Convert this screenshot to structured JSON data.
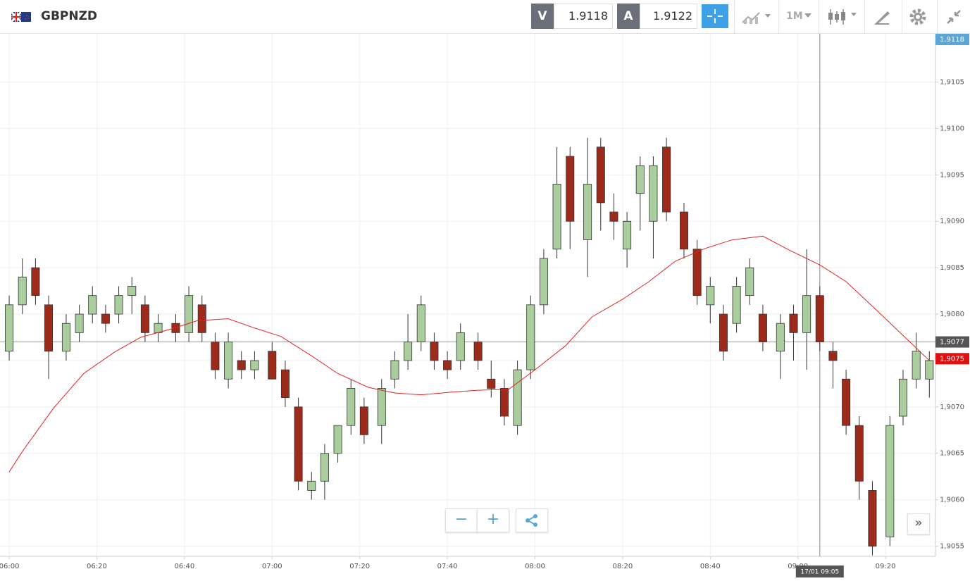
{
  "toolbar": {
    "symbol": "GBPNZD",
    "sell_label": "V",
    "sell_price": 1.9118,
    "buy_label": "A",
    "buy_price": 1.9122,
    "timeframe": "1M"
  },
  "chart_data": {
    "type": "candlestick",
    "x": [
      0,
      3,
      6,
      9,
      13,
      16,
      19,
      22,
      25,
      28,
      31,
      34,
      38,
      41,
      44,
      47,
      50,
      53,
      56,
      60,
      63,
      66,
      69,
      72,
      75,
      78,
      81,
      85,
      88,
      91,
      94,
      97,
      100,
      103,
      107,
      110,
      113,
      116,
      119,
      122,
      125,
      128,
      132,
      135,
      138,
      141,
      144,
      147,
      150,
      154,
      157,
      160,
      163,
      166,
      169,
      172,
      176,
      179,
      182,
      185,
      188,
      191,
      194,
      197,
      201,
      204,
      207,
      210
    ],
    "open": [
      1.9076,
      1.9081,
      1.9085,
      1.9081,
      1.9076,
      1.9078,
      1.908,
      1.908,
      1.908,
      1.9082,
      1.9081,
      1.9078,
      1.9079,
      1.9078,
      1.9081,
      1.9077,
      1.9073,
      1.9075,
      1.9074,
      1.9076,
      1.9074,
      1.907,
      1.9061,
      1.9062,
      1.9065,
      1.9068,
      1.907,
      1.9068,
      1.9073,
      1.9075,
      1.9077,
      1.9077,
      1.9075,
      1.9075,
      1.9077,
      1.9073,
      1.9072,
      1.9068,
      1.9074,
      1.9081,
      1.9087,
      1.9097,
      1.9088,
      1.9098,
      1.9091,
      1.9087,
      1.9093,
      1.909,
      1.9098,
      1.9091,
      1.9087,
      1.9081,
      1.908,
      1.9079,
      1.9082,
      1.908,
      1.9076,
      1.908,
      1.9078,
      1.9082,
      1.9076,
      1.9073,
      1.9068,
      1.9061,
      1.9056,
      1.9069,
      1.9073,
      1.9073
    ],
    "high": [
      1.9082,
      1.9086,
      1.9086,
      1.9082,
      1.908,
      1.9081,
      1.9083,
      1.9081,
      1.9083,
      1.9084,
      1.9082,
      1.908,
      1.908,
      1.9083,
      1.9082,
      1.9078,
      1.9078,
      1.9076,
      1.9076,
      1.9077,
      1.9075,
      1.9071,
      1.9063,
      1.9066,
      1.9068,
      1.9073,
      1.9071,
      1.9073,
      1.9076,
      1.908,
      1.9082,
      1.9078,
      1.9076,
      1.9079,
      1.9078,
      1.9075,
      1.9073,
      1.9075,
      1.9082,
      1.9087,
      1.9098,
      1.9098,
      1.9099,
      1.9099,
      1.9093,
      1.9091,
      1.9097,
      1.9097,
      1.9099,
      1.9092,
      1.9088,
      1.9084,
      1.9081,
      1.9084,
      1.9086,
      1.9081,
      1.908,
      1.9081,
      1.9087,
      1.9083,
      1.9077,
      1.9074,
      1.9069,
      1.9062,
      1.9069,
      1.9074,
      1.9078,
      1.9076
    ],
    "low": [
      1.9075,
      1.908,
      1.9081,
      1.9073,
      1.9075,
      1.9077,
      1.9079,
      1.9078,
      1.9079,
      1.908,
      1.9077,
      1.9077,
      1.9077,
      1.9077,
      1.9077,
      1.9073,
      1.9072,
      1.9073,
      1.9073,
      1.9073,
      1.907,
      1.9061,
      1.906,
      1.906,
      1.9064,
      1.9067,
      1.9066,
      1.9066,
      1.9072,
      1.9074,
      1.9076,
      1.9074,
      1.9073,
      1.9074,
      1.9074,
      1.9071,
      1.9068,
      1.9067,
      1.9073,
      1.908,
      1.9086,
      1.9087,
      1.9084,
      1.9089,
      1.9088,
      1.9085,
      1.9089,
      1.9086,
      1.909,
      1.9086,
      1.9081,
      1.9079,
      1.9075,
      1.9078,
      1.9081,
      1.9076,
      1.9073,
      1.9075,
      1.9074,
      1.9076,
      1.9072,
      1.9067,
      1.906,
      1.9054,
      1.9055,
      1.9068,
      1.9072,
      1.9071
    ],
    "close": [
      1.9081,
      1.9084,
      1.9082,
      1.9076,
      1.9079,
      1.908,
      1.9082,
      1.9079,
      1.9082,
      1.9083,
      1.9078,
      1.9079,
      1.9078,
      1.9082,
      1.9078,
      1.9074,
      1.9077,
      1.9074,
      1.9075,
      1.9073,
      1.9071,
      1.9062,
      1.9062,
      1.9065,
      1.9068,
      1.9072,
      1.9067,
      1.9072,
      1.9075,
      1.9077,
      1.9081,
      1.9075,
      1.9074,
      1.9078,
      1.9075,
      1.9072,
      1.9069,
      1.9074,
      1.9081,
      1.9086,
      1.9094,
      1.909,
      1.9094,
      1.9092,
      1.909,
      1.909,
      1.9096,
      1.9096,
      1.9091,
      1.9087,
      1.9082,
      1.9083,
      1.9076,
      1.9083,
      1.9085,
      1.9077,
      1.9079,
      1.9078,
      1.9082,
      1.9077,
      1.9075,
      1.9068,
      1.9062,
      1.9055,
      1.9068,
      1.9073,
      1.9076,
      1.9075
    ],
    "up_color": "#a9cd9c",
    "down_color": "#9c2b1c",
    "moving_average": {
      "color": "#e02424",
      "x": [
        0,
        3,
        10,
        17,
        24,
        30,
        37,
        43,
        50,
        56,
        62,
        69,
        75,
        82,
        88,
        94,
        101,
        107,
        114,
        120,
        127,
        133,
        140,
        146,
        152,
        159,
        165,
        172,
        178,
        185,
        191,
        198,
        210
      ],
      "values": [
        1.9063,
        1.90652,
        1.90698,
        1.90736,
        1.90759,
        1.90775,
        1.90784,
        1.90793,
        1.90795,
        1.90785,
        1.90776,
        1.90755,
        1.90736,
        1.90721,
        1.90715,
        1.90713,
        1.90716,
        1.90718,
        1.90719,
        1.9074,
        1.90766,
        1.90797,
        1.90816,
        1.90835,
        1.90857,
        1.90871,
        1.9088,
        1.90884,
        1.90869,
        1.90853,
        1.90835,
        1.90804,
        1.9075
      ]
    },
    "xlim": [
      -2.1,
      211.4
    ],
    "xticks": [
      {
        "value": 0,
        "label": "06:00"
      },
      {
        "value": 20,
        "label": "06:20"
      },
      {
        "value": 40,
        "label": "06:40"
      },
      {
        "value": 60,
        "label": "07:00"
      },
      {
        "value": 80,
        "label": "07:20"
      },
      {
        "value": 100,
        "label": "07:40"
      },
      {
        "value": 120,
        "label": "08:00"
      },
      {
        "value": 140,
        "label": "08:20"
      },
      {
        "value": 160,
        "label": "08:40"
      },
      {
        "value": 180,
        "label": "09:00"
      },
      {
        "value": 200,
        "label": "09:20"
      }
    ],
    "ylim": [
      1.90539,
      1.91102
    ],
    "yticks": [
      {
        "value": 1.9055,
        "label": "1,9055"
      },
      {
        "value": 1.906,
        "label": "1,9060"
      },
      {
        "value": 1.9065,
        "label": "1,9065"
      },
      {
        "value": 1.907,
        "label": "1,9070"
      },
      {
        "value": 1.9075,
        "label": "1,9075"
      },
      {
        "value": 1.908,
        "label": "1,9080"
      },
      {
        "value": 1.9085,
        "label": "1,9085"
      },
      {
        "value": 1.909,
        "label": "1,9090"
      },
      {
        "value": 1.9095,
        "label": "1,9095"
      },
      {
        "value": 1.91,
        "label": "1,9100"
      },
      {
        "value": 1.9105,
        "label": "1,9105"
      }
    ],
    "grid": true,
    "bid_marker": {
      "value": 1.9118,
      "label": "1,9118",
      "color": "#5aa6d6"
    },
    "ma_marker": {
      "value": 1.90752,
      "label": "1,9075",
      "color": "#e01010"
    },
    "crosshair": {
      "x": 185,
      "x_label": "17/01 09:05",
      "y": 1.9077,
      "y_label": "1,9077"
    }
  }
}
